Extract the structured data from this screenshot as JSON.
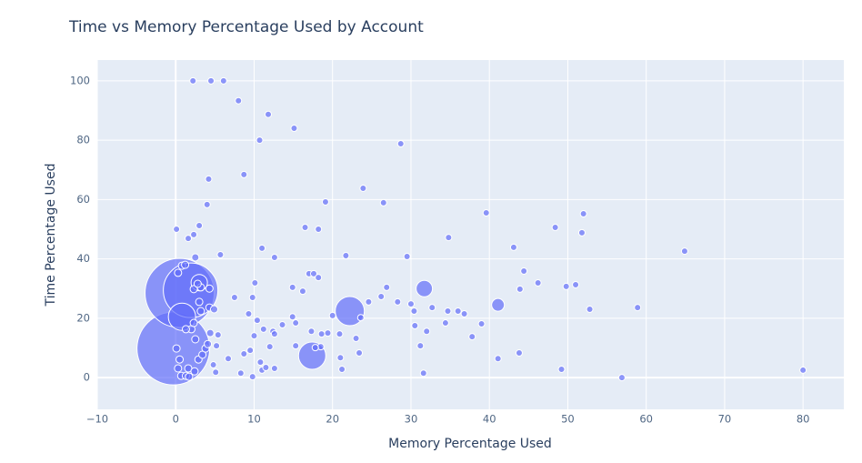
{
  "chart_data": {
    "type": "scatter",
    "title": "Time vs Memory Percentage Used by Account",
    "x_label": "Memory Percentage Used",
    "y_label": "Time Percentage Used",
    "color": "#636efa",
    "grid": true,
    "xlim": [
      -10,
      85.2
    ],
    "ylim": [
      -10.7,
      107
    ],
    "xticks": [
      {
        "value": -10,
        "label": "−10"
      },
      0,
      10,
      20,
      30,
      40,
      50,
      60,
      70,
      80
    ],
    "yticks": [
      0,
      20,
      40,
      60,
      80,
      100
    ],
    "x": [
      -0.3,
      0.5,
      1.9,
      0.8,
      22.2,
      17.4,
      31.7,
      41.1,
      3,
      2.2,
      4.5,
      6.1,
      8,
      11.8,
      10.7,
      15.1,
      28.7,
      4.2,
      23.9,
      8.7,
      4,
      19.1,
      26.5,
      39.6,
      52.0,
      48.4,
      51.8,
      0.1,
      3,
      16.5,
      18.2,
      34.8,
      1.6,
      2.3,
      11,
      43.1,
      64.9,
      5.7,
      12.6,
      21.7,
      29.5,
      44.4,
      17,
      17.6,
      18.2,
      10.1,
      14.9,
      26.9,
      46.2,
      49.8,
      51,
      43.9,
      16.2,
      7.5,
      9.8,
      26.2,
      28.3,
      30,
      24.6,
      58.9,
      52.8,
      36.0,
      34.7,
      36.8,
      30.4,
      32.7,
      20,
      23.6,
      14.9,
      9.3,
      10.4,
      13.6,
      15.3,
      34.4,
      39,
      30.5,
      32,
      17.3,
      18.6,
      19.4,
      20.9,
      23,
      37.8,
      12.4,
      12.6,
      11.2,
      10,
      5.4,
      31.2,
      12,
      15.3,
      5.2,
      18.5,
      17.8,
      9.5,
      8.7,
      23.4,
      21,
      41.1,
      10.8,
      8.3,
      9.8,
      11,
      11.5,
      12.6,
      6.7,
      5.1,
      21.2,
      31.6,
      49.2,
      56.9,
      80,
      43.8,
      4.8,
      0.1,
      0.5,
      0.3,
      0.7,
      1.3,
      1.7,
      1.6,
      2.4,
      2.9,
      3.4,
      3.8,
      4.1,
      4.4,
      2.5,
      2,
      1.3,
      2.3,
      4.3,
      4.9,
      3.2,
      3,
      2.3,
      3.2,
      2.8,
      4.3,
      0.8,
      1.2,
      2.5,
      0.3
    ],
    "values": [
      9.8,
      28.5,
      29.4,
      20.5,
      22.4,
      7.4,
      30,
      24.5,
      32,
      100,
      100,
      100,
      93.3,
      88.7,
      80,
      84,
      78.8,
      66.9,
      63.8,
      68.4,
      58.3,
      59.2,
      58.9,
      55.5,
      55.2,
      50.6,
      48.8,
      50,
      51.2,
      50.6,
      50,
      47.2,
      46.9,
      48.2,
      43.6,
      43.9,
      42.6,
      41.4,
      40.5,
      41.1,
      40.8,
      35.9,
      35,
      35,
      33.7,
      31.9,
      30.4,
      30.4,
      31.9,
      30.7,
      31.3,
      29.8,
      29.1,
      27,
      27,
      27.3,
      25.5,
      24.8,
      25.5,
      23.6,
      23,
      22.4,
      22.4,
      21.5,
      22.4,
      23.6,
      20.9,
      20.2,
      20.5,
      21.5,
      19.3,
      17.8,
      18.4,
      18.4,
      18.1,
      17.5,
      15.6,
      15.6,
      14.7,
      15,
      14.7,
      13.2,
      13.8,
      15.6,
      14.7,
      16.3,
      14.1,
      14.4,
      10.7,
      10.4,
      10.7,
      10.7,
      10.4,
      10.1,
      9.2,
      8,
      8.3,
      6.7,
      6.4,
      5.2,
      1.5,
      0.3,
      2.5,
      3.4,
      3.1,
      6.4,
      1.8,
      2.8,
      1.5,
      2.8,
      0,
      2.5,
      8.3,
      4.3,
      9.8,
      6.1,
      3.1,
      0.6,
      0.6,
      0.3,
      3.1,
      2.1,
      6.1,
      7.7,
      9.8,
      11.3,
      15,
      12.9,
      16.3,
      16.3,
      18.4,
      23.6,
      23,
      22.4,
      25.5,
      29.8,
      30.4,
      31.6,
      30,
      37.7,
      38,
      40.5,
      35.3
    ],
    "sizes": [
      80,
      76,
      60,
      30,
      32,
      30,
      18,
      14,
      18,
      7,
      7,
      7,
      7,
      7,
      7,
      7,
      7,
      7,
      7,
      7,
      7,
      7,
      7,
      7,
      7,
      7,
      7,
      7,
      7,
      7,
      7,
      7,
      7,
      7,
      7,
      7,
      7,
      7,
      7,
      7,
      7,
      7,
      7,
      7,
      7,
      7,
      7,
      7,
      7,
      7,
      7,
      7,
      7,
      7,
      7,
      7,
      7,
      7,
      7,
      7,
      7,
      7,
      7,
      7,
      7,
      7,
      7,
      7,
      7,
      7,
      7,
      7,
      7,
      7,
      7,
      7,
      7,
      7,
      7,
      7,
      7,
      7,
      7,
      7,
      7,
      7,
      7,
      7,
      7,
      7,
      7,
      7,
      7,
      7,
      7,
      7,
      7,
      7,
      7,
      7,
      7,
      7,
      7,
      7,
      7,
      7,
      7,
      7,
      7,
      7,
      7,
      7,
      7,
      7,
      8,
      8,
      8,
      8,
      8,
      8,
      8,
      8,
      8,
      8,
      8,
      8,
      8,
      8,
      8,
      8,
      8,
      8,
      8,
      8,
      8,
      8,
      8,
      8,
      8,
      8,
      8,
      8,
      8
    ]
  }
}
